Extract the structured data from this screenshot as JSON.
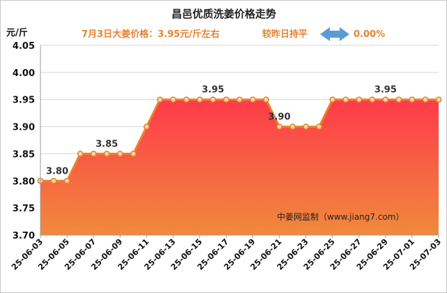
{
  "chart_data": {
    "type": "area",
    "title": "昌邑优质洗姜价格走势",
    "subtitle": {
      "price_text": "7月3日大姜价格：3.95元/斤左右",
      "compare_text": "较昨日持平",
      "change_text": "0.00%"
    },
    "ylabel": "元/斤",
    "ylim": [
      3.7,
      4.05
    ],
    "yticks": [
      "3.70",
      "3.75",
      "3.80",
      "3.85",
      "3.90",
      "3.95",
      "4.00",
      "4.05"
    ],
    "x": [
      "25-06-03",
      "25-06-04",
      "25-06-05",
      "25-06-06",
      "25-06-07",
      "25-06-08",
      "25-06-09",
      "25-06-10",
      "25-06-11",
      "25-06-12",
      "25-06-13",
      "25-06-14",
      "25-06-15",
      "25-06-16",
      "25-06-17",
      "25-06-18",
      "25-06-19",
      "25-06-20",
      "25-06-21",
      "25-06-22",
      "25-06-23",
      "25-06-24",
      "25-06-25",
      "25-06-26",
      "25-06-27",
      "25-06-28",
      "25-06-29",
      "25-06-30",
      "25-07-01",
      "25-07-02",
      "25-07-03"
    ],
    "x_tick_labels": [
      "25-06-03",
      "25-06-05",
      "25-06-07",
      "25-06-09",
      "25-06-11",
      "25-06-13",
      "25-06-15",
      "25-06-17",
      "25-06-19",
      "25-06-21",
      "25-06-23",
      "25-06-25",
      "25-06-27",
      "25-06-29",
      "25-07-01",
      "25-07-03"
    ],
    "series": [
      {
        "values": [
          3.8,
          3.8,
          3.8,
          3.85,
          3.85,
          3.85,
          3.85,
          3.85,
          3.9,
          3.95,
          3.95,
          3.95,
          3.95,
          3.95,
          3.95,
          3.95,
          3.95,
          3.95,
          3.9,
          3.9,
          3.9,
          3.9,
          3.95,
          3.95,
          3.95,
          3.95,
          3.95,
          3.95,
          3.95,
          3.95,
          3.95
        ]
      }
    ],
    "data_labels": [
      {
        "x": "25-06-03",
        "text": "3.80"
      },
      {
        "x": "25-06-08",
        "text": "3.85"
      },
      {
        "x": "25-06-16",
        "text": "3.95"
      },
      {
        "x": "25-06-21",
        "text": "3.90"
      },
      {
        "x": "25-06-29",
        "text": "3.95"
      }
    ],
    "credit": "中姜网监制（www.jiang7.com）",
    "grid": {
      "horizontal": true,
      "vertical": false
    },
    "colors": {
      "line": "#e8822f",
      "fill_top": "#ff3a4a",
      "fill_bottom": "#f08a3c",
      "marker_fill": "#fbd7a6",
      "subtitle": "#e8822f",
      "arrow": "#5b9bd5",
      "grid": "#d4d4d4"
    }
  }
}
